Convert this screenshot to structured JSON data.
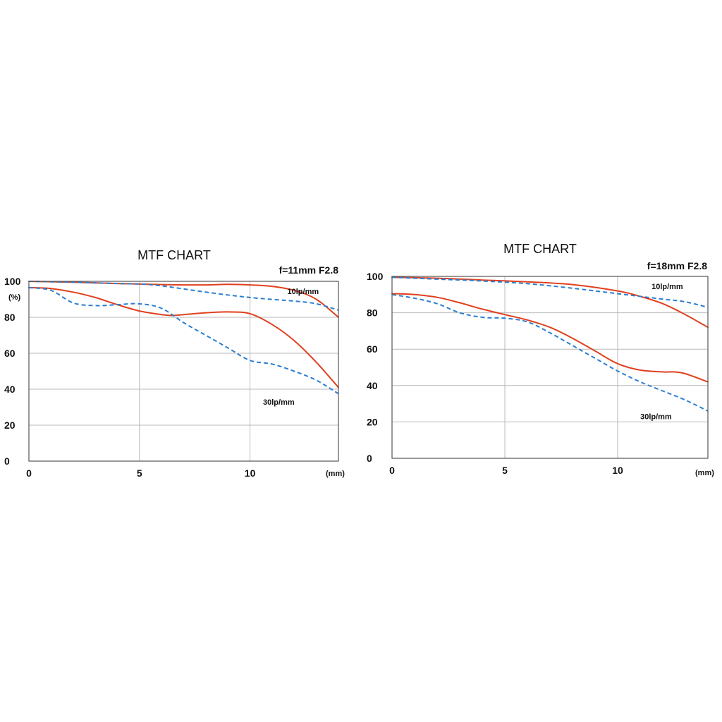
{
  "chart_data": [
    {
      "type": "line",
      "title": "MTF CHART",
      "subtitle": "f=11mm F2.8",
      "x_unit": "(mm)",
      "y_unit": "(%)",
      "xlim": [
        0,
        14
      ],
      "ylim": [
        0,
        100
      ],
      "x_ticks": [
        "0",
        "5",
        "10"
      ],
      "x_tick_values": [
        0,
        5,
        10
      ],
      "y_ticks": [
        "0",
        "20",
        "40",
        "60",
        "80",
        "100"
      ],
      "y_tick_values": [
        0,
        20,
        40,
        60,
        80,
        100
      ],
      "grid": true,
      "annotations": [
        {
          "text": "10lp/mm",
          "x": 12.4,
          "y": 94.5
        },
        {
          "text": "30lp/mm",
          "x": 11.3,
          "y": 33
        }
      ],
      "series": [
        {
          "color": "#e0401e",
          "dashed": false,
          "x": [
            0,
            2,
            4,
            6,
            7,
            8,
            9,
            10,
            11,
            12,
            13,
            14
          ],
          "y": [
            100,
            99.5,
            98.8,
            98.2,
            98,
            98,
            98.3,
            98,
            97.2,
            95,
            90,
            80
          ]
        },
        {
          "color": "#2a7fd0",
          "dashed": true,
          "x": [
            0,
            2,
            4,
            5,
            6,
            8,
            10,
            12,
            13,
            14
          ],
          "y": [
            100,
            99.5,
            98.8,
            98.5,
            97.5,
            94,
            91,
            89,
            87.5,
            84
          ]
        },
        {
          "color": "#e0401e",
          "dashed": false,
          "x": [
            0,
            1,
            2,
            3,
            4,
            5,
            6,
            6.5,
            7,
            8,
            9,
            10,
            11,
            12,
            13,
            14
          ],
          "y": [
            96.5,
            96,
            94,
            91,
            87,
            83.5,
            81.5,
            81,
            81.5,
            82.5,
            83,
            82,
            76,
            67,
            55,
            41
          ]
        },
        {
          "color": "#2a7fd0",
          "dashed": true,
          "x": [
            0,
            1,
            2,
            3,
            4,
            5,
            6,
            7,
            8,
            9,
            10,
            11,
            12,
            13,
            14
          ],
          "y": [
            96.5,
            95,
            88,
            86.5,
            87,
            87.5,
            85,
            77,
            70,
            63,
            56,
            54,
            50,
            45,
            37.5
          ]
        }
      ]
    },
    {
      "type": "line",
      "title": "MTF CHART",
      "subtitle": "f=18mm F2.8",
      "x_unit": "(mm)",
      "y_unit": "",
      "xlim": [
        0,
        14
      ],
      "ylim": [
        0,
        100
      ],
      "x_ticks": [
        "0",
        "5",
        "10"
      ],
      "x_tick_values": [
        0,
        5,
        10
      ],
      "y_ticks": [
        "0",
        "20",
        "40",
        "60",
        "80",
        "100"
      ],
      "y_tick_values": [
        0,
        20,
        40,
        60,
        80,
        100
      ],
      "grid": true,
      "annotations": [
        {
          "text": "10lp/mm",
          "x": 12.2,
          "y": 94.5
        },
        {
          "text": "30lp/mm",
          "x": 11.7,
          "y": 23
        }
      ],
      "series": [
        {
          "color": "#e0401e",
          "dashed": false,
          "x": [
            0,
            2,
            4,
            6,
            8,
            10,
            11,
            12,
            13,
            14
          ],
          "y": [
            99.5,
            99,
            98,
            97,
            95.5,
            92,
            89,
            85,
            79,
            72
          ]
        },
        {
          "color": "#2a7fd0",
          "dashed": true,
          "x": [
            0,
            2,
            4,
            6,
            8,
            10,
            11,
            12,
            13,
            14
          ],
          "y": [
            99.5,
            98.5,
            97.5,
            96,
            93.5,
            90.5,
            89,
            87.5,
            86,
            83
          ]
        },
        {
          "color": "#e0401e",
          "dashed": false,
          "x": [
            0,
            1,
            2,
            3,
            4,
            5,
            6,
            7,
            8,
            9,
            10,
            11,
            12,
            12.5,
            13,
            14
          ],
          "y": [
            90.5,
            90,
            88.5,
            85.5,
            82,
            79,
            76,
            72,
            66,
            59,
            52,
            48.5,
            47.5,
            47.5,
            46.5,
            42
          ]
        },
        {
          "color": "#2a7fd0",
          "dashed": true,
          "x": [
            0,
            1,
            2,
            3,
            4,
            5,
            6,
            7,
            8,
            9,
            10,
            11,
            12,
            13,
            14
          ],
          "y": [
            90,
            88,
            85,
            80,
            77.5,
            77,
            75,
            69,
            62,
            55,
            48,
            42,
            37,
            32,
            26
          ]
        }
      ]
    }
  ]
}
